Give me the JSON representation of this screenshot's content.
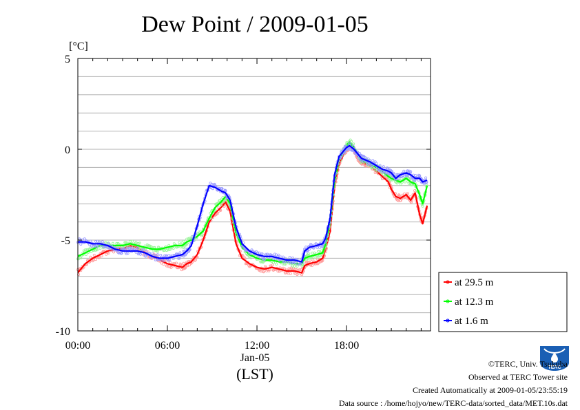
{
  "chart_data": {
    "type": "line",
    "title": "Dew Point / 2009-01-05",
    "ylabel": "[°C]",
    "xlabel": "(LST)",
    "x_date_label": "Jan-05",
    "ylim": [
      -10,
      5
    ],
    "xlim": [
      0,
      23.4
    ],
    "yticks": [
      5,
      0,
      -5,
      -10
    ],
    "ytick_labels": [
      "5",
      "0",
      "-5",
      "-10"
    ],
    "xticks": [
      0,
      6,
      12,
      18
    ],
    "xtick_labels": [
      "00:00",
      "06:00",
      "12:00",
      "18:00"
    ],
    "grid": true,
    "legend_position": "right",
    "series": [
      {
        "name": "at 29.5 m",
        "color": "#ff0000",
        "x": [
          0,
          0.5,
          1,
          1.5,
          2,
          2.5,
          3,
          3.5,
          4,
          4.5,
          5,
          5.5,
          6,
          6.5,
          7,
          7.3,
          7.6,
          8,
          8.4,
          8.8,
          9.2,
          9.6,
          9.9,
          10.2,
          10.6,
          11,
          11.5,
          12,
          12.5,
          13,
          13.5,
          14,
          14.5,
          15,
          15.2,
          15.5,
          16,
          16.4,
          16.6,
          16.9,
          17.2,
          17.5,
          17.8,
          18,
          18.2,
          18.5,
          18.8,
          19,
          19.3,
          19.6,
          20,
          20.4,
          20.8,
          21,
          21.3,
          21.6,
          22,
          22.3,
          22.6,
          22.9,
          23.1,
          23.4
        ],
        "y": [
          -6.8,
          -6.3,
          -6.0,
          -5.8,
          -5.6,
          -5.5,
          -5.5,
          -5.3,
          -5.4,
          -5.7,
          -5.9,
          -6.1,
          -6.3,
          -6.4,
          -6.5,
          -6.3,
          -6.2,
          -5.8,
          -5.0,
          -4.0,
          -3.5,
          -3.2,
          -2.9,
          -3.4,
          -5.2,
          -6.0,
          -6.3,
          -6.5,
          -6.6,
          -6.5,
          -6.6,
          -6.7,
          -6.7,
          -6.8,
          -6.4,
          -6.3,
          -6.2,
          -6.0,
          -5.5,
          -4.5,
          -2.0,
          -0.8,
          -0.3,
          0.0,
          0.2,
          0.0,
          -0.5,
          -0.7,
          -0.8,
          -0.9,
          -1.2,
          -1.5,
          -1.8,
          -2.2,
          -2.6,
          -2.7,
          -2.5,
          -2.8,
          -2.4,
          -3.6,
          -4.1,
          -3.1
        ]
      },
      {
        "name": "at 12.3 m",
        "color": "#00ff00",
        "x": [
          0,
          0.5,
          1,
          1.5,
          2,
          2.5,
          3,
          3.5,
          4,
          4.5,
          5,
          5.5,
          6,
          6.5,
          7,
          7.3,
          7.6,
          8,
          8.4,
          8.8,
          9.2,
          9.6,
          9.9,
          10.2,
          10.6,
          11,
          11.5,
          12,
          12.5,
          13,
          13.5,
          14,
          14.5,
          15,
          15.2,
          15.5,
          16,
          16.4,
          16.6,
          16.9,
          17.2,
          17.5,
          17.8,
          18,
          18.2,
          18.5,
          18.8,
          19,
          19.3,
          19.6,
          20,
          20.4,
          20.8,
          21,
          21.3,
          21.6,
          22,
          22.3,
          22.6,
          22.9,
          23.1,
          23.4
        ],
        "y": [
          -5.9,
          -5.7,
          -5.5,
          -5.3,
          -5.3,
          -5.3,
          -5.3,
          -5.2,
          -5.3,
          -5.4,
          -5.5,
          -5.5,
          -5.4,
          -5.3,
          -5.3,
          -5.1,
          -5.0,
          -4.8,
          -4.5,
          -3.8,
          -3.2,
          -2.9,
          -2.6,
          -3.0,
          -4.6,
          -5.4,
          -5.8,
          -6.0,
          -6.1,
          -6.1,
          -6.2,
          -6.2,
          -6.3,
          -6.3,
          -6.0,
          -5.9,
          -5.8,
          -5.7,
          -5.2,
          -4.0,
          -1.7,
          -0.6,
          -0.1,
          0.2,
          0.4,
          0.1,
          -0.3,
          -0.6,
          -0.7,
          -0.8,
          -1.0,
          -1.2,
          -1.5,
          -1.6,
          -1.7,
          -1.8,
          -1.6,
          -1.8,
          -1.9,
          -2.5,
          -3.0,
          -2.0
        ]
      },
      {
        "name": "at 1.6 m",
        "color": "#0000ff",
        "x": [
          0,
          0.5,
          1,
          1.5,
          2,
          2.5,
          3,
          3.5,
          4,
          4.5,
          5,
          5.5,
          6,
          6.5,
          7,
          7.3,
          7.6,
          8,
          8.4,
          8.8,
          9.2,
          9.6,
          9.9,
          10.2,
          10.6,
          11,
          11.5,
          12,
          12.5,
          13,
          13.5,
          14,
          14.5,
          15,
          15.2,
          15.5,
          16,
          16.4,
          16.6,
          16.9,
          17.2,
          17.5,
          17.8,
          18,
          18.2,
          18.5,
          18.8,
          19,
          19.3,
          19.6,
          20,
          20.4,
          20.8,
          21,
          21.3,
          21.6,
          22,
          22.3,
          22.6,
          22.9,
          23.1,
          23.4
        ],
        "y": [
          -5.1,
          -5.1,
          -5.2,
          -5.2,
          -5.3,
          -5.5,
          -5.6,
          -5.6,
          -5.6,
          -5.7,
          -5.9,
          -6.0,
          -6.0,
          -5.9,
          -5.8,
          -5.6,
          -5.3,
          -4.2,
          -3.0,
          -2.0,
          -2.1,
          -2.3,
          -2.4,
          -2.8,
          -4.3,
          -5.2,
          -5.6,
          -5.8,
          -5.9,
          -5.9,
          -6.0,
          -6.1,
          -6.1,
          -6.2,
          -5.6,
          -5.4,
          -5.3,
          -5.2,
          -4.9,
          -3.8,
          -1.4,
          -0.4,
          -0.1,
          0.1,
          0.2,
          0.0,
          -0.3,
          -0.5,
          -0.6,
          -0.7,
          -0.9,
          -1.1,
          -1.2,
          -1.3,
          -1.6,
          -1.4,
          -1.3,
          -1.4,
          -1.6,
          -1.6,
          -1.8,
          -1.7
        ]
      }
    ]
  },
  "footer": {
    "copyright": "©TERC, Univ. Tsukuba",
    "observed": "Observed at TERC Tower site",
    "created": "Created Automatically at 2009-01-05/23:55:19",
    "source": "Data source : /home/hojyo/new/TERC-data/sorted_data/MET.10s.dat"
  },
  "logo": {
    "text": "TERC",
    "color": "#1a5fb4"
  }
}
